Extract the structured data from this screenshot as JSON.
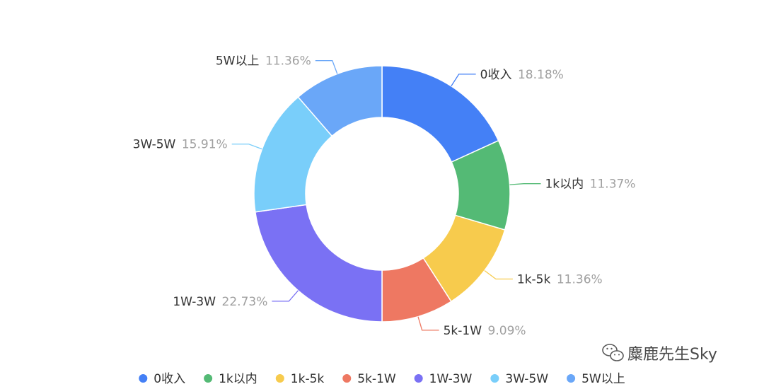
{
  "chart_data": {
    "type": "pie",
    "variant": "donut",
    "slices": [
      {
        "name": "0收入",
        "value": 18.18,
        "label": "18.18%",
        "color": "#4480F6"
      },
      {
        "name": "1k以内",
        "value": 11.37,
        "label": "11.37%",
        "color": "#54BA75"
      },
      {
        "name": "1k-5k",
        "value": 11.36,
        "label": "11.36%",
        "color": "#F7CB4D"
      },
      {
        "name": "5k-1W",
        "value": 9.09,
        "label": "9.09%",
        "color": "#EE7862"
      },
      {
        "name": "1W-3W",
        "value": 22.73,
        "label": "22.73%",
        "color": "#7A71F4"
      },
      {
        "name": "3W-5W",
        "value": 15.91,
        "label": "15.91%",
        "color": "#79CEFA"
      },
      {
        "name": "5W以上",
        "value": 11.36,
        "label": "11.36%",
        "color": "#6AA7F8"
      }
    ],
    "legend_position": "bottom",
    "start_angle": "top",
    "direction": "clockwise"
  },
  "watermark": {
    "text": "麋鹿先生Sky",
    "icon": "wechat-icon"
  }
}
